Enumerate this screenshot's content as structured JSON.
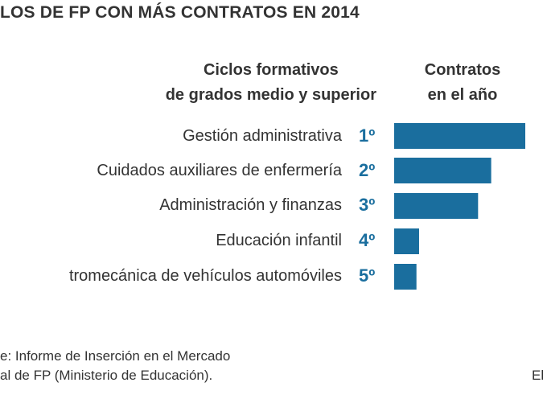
{
  "header": {
    "title": "LOS DE FP CON MÁS CONTRATOS EN 2014",
    "left_heading_line1": "Ciclos formativos",
    "left_heading_line2": "de grados medio y superior",
    "right_heading_line1": "Contratos",
    "right_heading_line2": "en el año"
  },
  "footer": {
    "source_line1": "e: Informe de Inserción en el Mercado",
    "source_line2": "al de FP (Ministerio de Educación).",
    "credit": "El"
  },
  "colors": {
    "bar": "#1a6e9e",
    "rank": "#1a6e9e"
  },
  "chart_data": {
    "type": "bar",
    "orientation": "horizontal",
    "title": "LOS DE FP CON MÁS CONTRATOS EN 2014",
    "xlabel": "Contratos en el año",
    "ylabel": "Ciclos formativos de grados medio y superior",
    "grid": false,
    "xlim": [
      0,
      100
    ],
    "categories": [
      "Gestión administrativa",
      "Cuidados auxiliares de enfermería",
      "Administración y finanzas",
      "Educación infantil",
      "tromecánica de vehículos automóviles"
    ],
    "ranks": [
      "1º",
      "2º",
      "3º",
      "4º",
      "5º"
    ],
    "values": [
      100,
      74,
      64,
      19,
      17
    ]
  }
}
